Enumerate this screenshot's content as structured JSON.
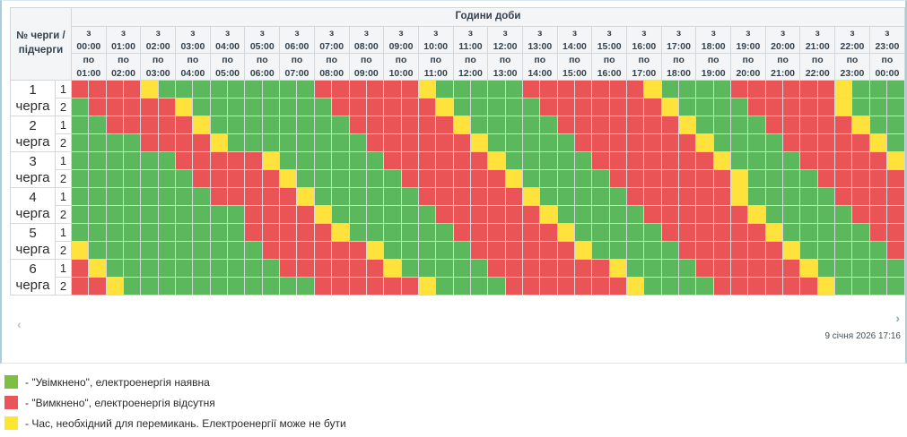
{
  "header": {
    "corner_line1": "№ черги /",
    "corner_line2": "підчерги",
    "hours_title": "Години доби",
    "from_prefix": "з",
    "to_prefix": "по",
    "hours": [
      {
        "from": "00:00",
        "to": "01:00"
      },
      {
        "from": "01:00",
        "to": "02:00"
      },
      {
        "from": "02:00",
        "to": "03:00"
      },
      {
        "from": "03:00",
        "to": "04:00"
      },
      {
        "from": "04:00",
        "to": "05:00"
      },
      {
        "from": "05:00",
        "to": "06:00"
      },
      {
        "from": "06:00",
        "to": "07:00"
      },
      {
        "from": "07:00",
        "to": "08:00"
      },
      {
        "from": "08:00",
        "to": "09:00"
      },
      {
        "from": "09:00",
        "to": "10:00"
      },
      {
        "from": "10:00",
        "to": "11:00"
      },
      {
        "from": "11:00",
        "to": "12:00"
      },
      {
        "from": "12:00",
        "to": "13:00"
      },
      {
        "from": "13:00",
        "to": "14:00"
      },
      {
        "from": "14:00",
        "to": "15:00"
      },
      {
        "from": "15:00",
        "to": "16:00"
      },
      {
        "from": "16:00",
        "to": "17:00"
      },
      {
        "from": "17:00",
        "to": "18:00"
      },
      {
        "from": "18:00",
        "to": "19:00"
      },
      {
        "from": "19:00",
        "to": "20:00"
      },
      {
        "from": "20:00",
        "to": "21:00"
      },
      {
        "from": "21:00",
        "to": "22:00"
      },
      {
        "from": "22:00",
        "to": "23:00"
      },
      {
        "from": "23:00",
        "to": "00:00"
      }
    ]
  },
  "cell_legend_codes": {
    "G": "on",
    "R": "off",
    "Y": "switching"
  },
  "queues": [
    {
      "num": "1",
      "word": "черга",
      "subqueues": [
        {
          "label": "1",
          "pattern": "RRRRYGGGGGGGGGRRRRRRYGGGGGRRRRRRRYGGGGRRRRRRYGGG"
        },
        {
          "label": "2",
          "pattern": "GRRRRRYGGGGGGGGRRRRRRYGGGGGRRRRRRRYGGGGRRRRRYGGG"
        }
      ]
    },
    {
      "num": "2",
      "word": "черга",
      "subqueues": [
        {
          "label": "1",
          "pattern": "GGRRRRRYGGGGGGGGRRRRRRYGGGGGRRRRRRRYGGGGRRRRRYGG"
        },
        {
          "label": "2",
          "pattern": "GGGGRRRRYGGGGGGGGRRRRRRYGGGGGRRRRRRRYGGGGRRRRRYG"
        }
      ]
    },
    {
      "num": "3",
      "word": "черга",
      "subqueues": [
        {
          "label": "1",
          "pattern": "GGGGGGRRRRRYGGGGGGRRRRRRYGGGGGRRRRRRRYGGGGRRRRRY"
        },
        {
          "label": "2",
          "pattern": "GGGGGGGRRRRRYGGGGGGRRRRRRYGGGGGRRRRRRRYGGGGRRRRR"
        }
      ]
    },
    {
      "num": "4",
      "word": "черга",
      "subqueues": [
        {
          "label": "1",
          "pattern": "GGGGGGGGRRRRRYGGGGGGRRRRRRYGGGGGRRRRRRYGGGGGRRRR"
        },
        {
          "label": "2",
          "pattern": "GGGGGGGGGGRRRRYGGGGGGRRRRRRYGGGGGRRRRRRYGGGGGRRR"
        }
      ]
    },
    {
      "num": "5",
      "word": "черга",
      "subqueues": [
        {
          "label": "1",
          "pattern": "GGGGGGGGGGRRRRRYGGGGGGRRRRRRYGGGGGRRRRRRYGGGGGRR"
        },
        {
          "label": "2",
          "pattern": "YGGGGGGGGGGRRRRRRYGGGGGRRRRRRYGGGGGRRRRRRYGGGGGR"
        }
      ]
    },
    {
      "num": "6",
      "word": "черга",
      "subqueues": [
        {
          "label": "1",
          "pattern": "RYGGGGGGGGGGRRRRRRYGGGGGRRRRRRRYGGGGRRRRRRYGGGGG"
        },
        {
          "label": "2",
          "pattern": "RRYGGGGGGGGGGGRRRRRRYGGGGRRRRRRRYGGGGRRRRRRYGGGG"
        }
      ]
    }
  ],
  "colors": {
    "on": "#5cb85c",
    "off": "#eb5456",
    "switching": "#ffe23b"
  },
  "footer": {
    "prev_arrow": "‹",
    "next_arrow": "›",
    "timestamp": "9 січня 2026 17:16"
  },
  "legend": [
    {
      "color": "#7dbf43",
      "label": "- \"Увімкнено\", електроенергія наявна"
    },
    {
      "color": "#e9555a",
      "label": "- \"Вимкнено\", електроенергія відсутня"
    },
    {
      "color": "#fde630",
      "label": "- Час, необхідний для перемикань. Електроенергії може не бути"
    }
  ]
}
